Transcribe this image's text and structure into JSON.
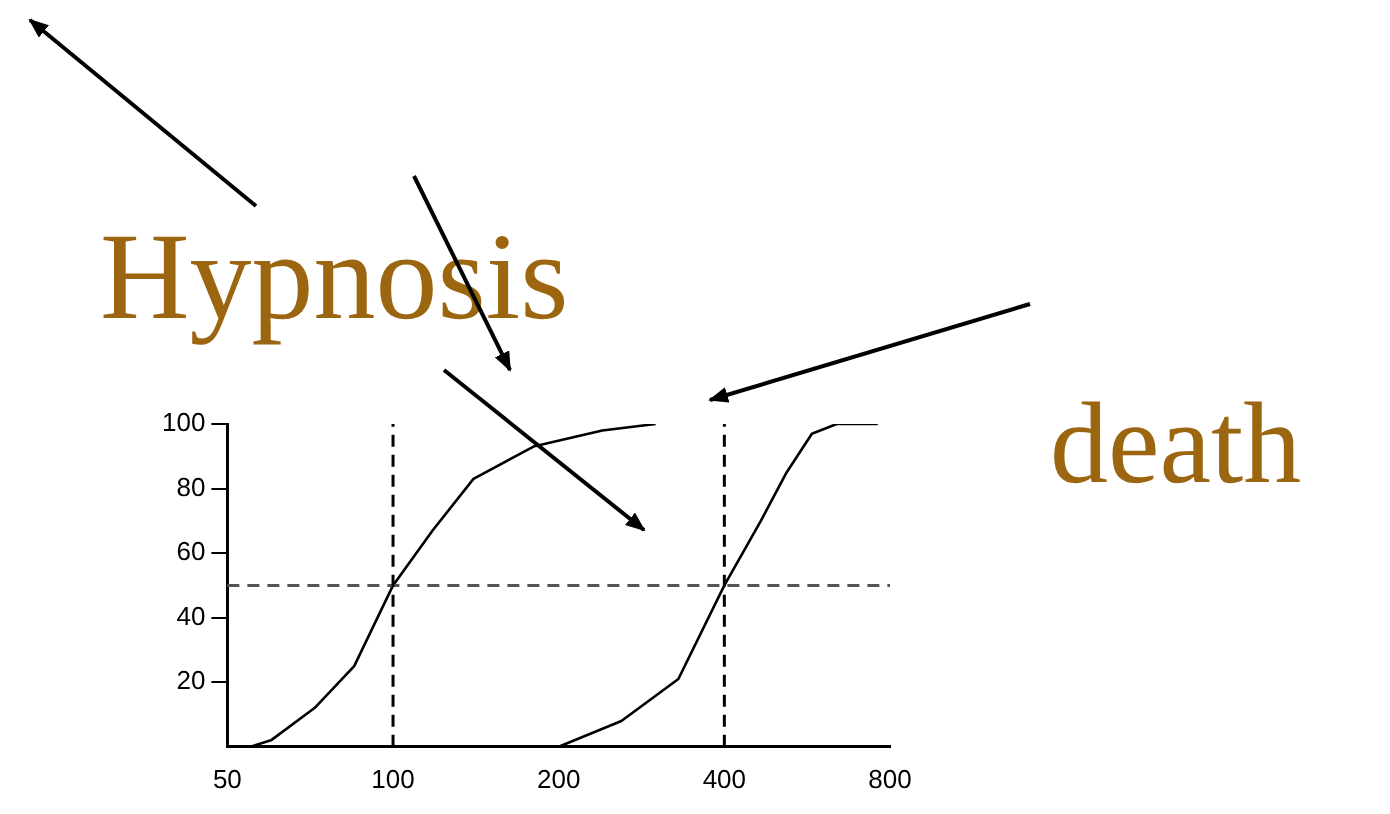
{
  "chart_data": {
    "type": "line",
    "log": "x",
    "xlim": [
      50,
      800
    ],
    "xticks": [
      50,
      100,
      200,
      400,
      800
    ],
    "ylim": [
      0,
      100
    ],
    "yticks": [
      20,
      40,
      60,
      80,
      100
    ],
    "grid": false,
    "legend": false,
    "marker": "none",
    "line_style": "solid",
    "annotations": [
      "Hypnosis",
      "death"
    ],
    "ref_lines": [
      {
        "axis": "y",
        "value": 50,
        "line_style": "dashed",
        "color": "#555555"
      },
      {
        "axis": "x",
        "value": 100,
        "line_style": "dashed",
        "color": "#000000"
      },
      {
        "axis": "x",
        "value": 400,
        "line_style": "dashed",
        "color": "#000000"
      }
    ],
    "series": [
      {
        "color": "#000000",
        "x": [
          55,
          60,
          72,
          85,
          100,
          118,
          140,
          180,
          240,
          300
        ],
        "values": [
          0,
          2,
          12,
          25,
          50,
          67,
          83,
          93,
          98,
          100
        ]
      },
      {
        "color": "#000000",
        "x": [
          200,
          260,
          330,
          400,
          466,
          519,
          577,
          640,
          760
        ],
        "values": [
          0,
          8,
          21,
          50,
          70,
          85,
          97,
          100,
          100
        ]
      }
    ]
  }
}
